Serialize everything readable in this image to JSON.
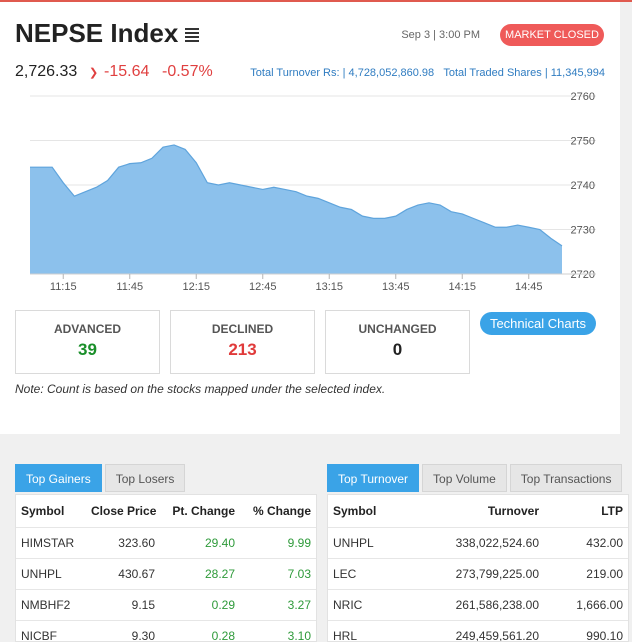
{
  "header": {
    "title": "NEPSE Index",
    "date": "Sep 3 | 3:00 PM",
    "status": "MARKET CLOSED",
    "index_value": "2,726.33",
    "change": "-15.64",
    "change_pct": "-0.57%",
    "turnover_text": "Total Turnover Rs: | 4,728,052,860.98",
    "shares_text": "Total Traded Shares | 11,345,994"
  },
  "chart_data": {
    "type": "area",
    "x": [
      "11:00",
      "11:05",
      "11:10",
      "11:15",
      "11:20",
      "11:25",
      "11:30",
      "11:35",
      "11:40",
      "11:45",
      "11:50",
      "11:55",
      "12:00",
      "12:05",
      "12:10",
      "12:15",
      "12:20",
      "12:25",
      "12:30",
      "12:35",
      "12:40",
      "12:45",
      "12:50",
      "12:55",
      "13:00",
      "13:05",
      "13:10",
      "13:15",
      "13:20",
      "13:25",
      "13:30",
      "13:35",
      "13:40",
      "13:45",
      "13:50",
      "13:55",
      "14:00",
      "14:05",
      "14:10",
      "14:15",
      "14:20",
      "14:25",
      "14:30",
      "14:35",
      "14:40",
      "14:45",
      "14:50",
      "14:55",
      "15:00"
    ],
    "y": [
      2744,
      2744,
      2744,
      2740.5,
      2737.5,
      2738.5,
      2739.5,
      2741,
      2744,
      2744.8,
      2745,
      2746,
      2748.5,
      2749,
      2748,
      2745,
      2740.5,
      2740,
      2740.5,
      2740,
      2739.5,
      2739,
      2739.5,
      2739,
      2738.5,
      2737.5,
      2737,
      2736,
      2735,
      2734.5,
      2733,
      2732.5,
      2732.5,
      2733,
      2734.5,
      2735.5,
      2736,
      2735.5,
      2734,
      2733.5,
      2732.5,
      2731.5,
      2730.5,
      2730.5,
      2731,
      2730.5,
      2730,
      2728,
      2726.33
    ],
    "yticks": [
      "2720",
      "2730",
      "2740",
      "2750",
      "2760"
    ],
    "xticks": [
      "11:15",
      "11:45",
      "12:15",
      "12:45",
      "13:15",
      "13:45",
      "14:15",
      "14:45"
    ],
    "ylim": [
      2720,
      2760
    ],
    "grid": true,
    "fill_color": "#8cc1ec",
    "line_color": "#5fa4dc"
  },
  "stats": [
    {
      "label": "ADVANCED",
      "value": "39",
      "color": "#1a8f2a"
    },
    {
      "label": "DECLINED",
      "value": "213",
      "color": "#e03a3a"
    },
    {
      "label": "UNCHANGED",
      "value": "0",
      "color": "#222222"
    }
  ],
  "tech_button": "Technical Charts",
  "note": "Note: Count is based on the stocks mapped under the selected index.",
  "gainers": {
    "tabs": [
      "Top Gainers",
      "Top Losers"
    ],
    "headers": [
      "Symbol",
      "Close Price",
      "Pt. Change",
      "% Change"
    ],
    "rows": [
      [
        "HIMSTAR",
        "323.60",
        "29.40",
        "9.99"
      ],
      [
        "UNHPL",
        "430.67",
        "28.27",
        "7.03"
      ],
      [
        "NMBHF2",
        "9.15",
        "0.29",
        "3.27"
      ],
      [
        "NICBF",
        "9.30",
        "0.28",
        "3.10"
      ]
    ]
  },
  "turnover": {
    "tabs": [
      "Top Turnover",
      "Top Volume",
      "Top Transactions"
    ],
    "headers": [
      "Symbol",
      "Turnover",
      "LTP"
    ],
    "rows": [
      [
        "UNHPL",
        "338,022,524.60",
        "432.00"
      ],
      [
        "LEC",
        "273,799,225.00",
        "219.00"
      ],
      [
        "NRIC",
        "261,586,238.00",
        "1,666.00"
      ],
      [
        "HRL",
        "249,459,561.20",
        "990.10"
      ]
    ]
  },
  "colors": {
    "accent": "#3aa3e7",
    "negative": "#e04040",
    "positive": "#2e9a3a",
    "status_badge": "#ef5a59"
  }
}
